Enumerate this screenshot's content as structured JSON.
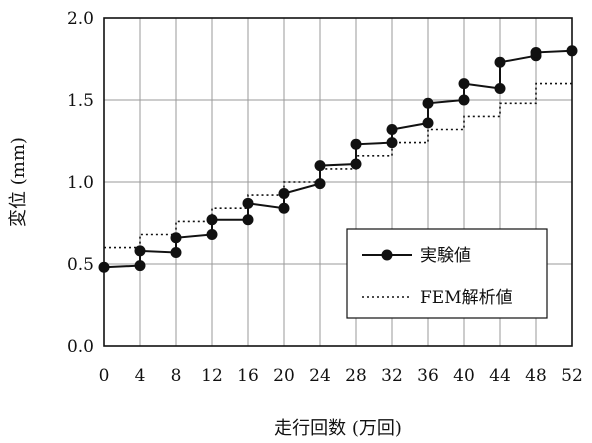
{
  "chart_data": {
    "type": "line",
    "xlabel": "走行回数 (万回)",
    "ylabel": "変位 (mm)",
    "xlim": [
      0,
      52
    ],
    "ylim": [
      0.0,
      2.0
    ],
    "x_ticks": [
      "0",
      "4",
      "8",
      "12",
      "16",
      "20",
      "24",
      "28",
      "32",
      "36",
      "40",
      "44",
      "48",
      "52"
    ],
    "y_ticks": [
      "0.0",
      "0.5",
      "1.0",
      "1.5",
      "2.0"
    ],
    "grid": true,
    "legend_position": "lower-right",
    "series": [
      {
        "name": "実験値",
        "style": "solid-line-markers",
        "color": "#111111",
        "points": [
          [
            0,
            0.48
          ],
          [
            4,
            0.49
          ],
          [
            4,
            0.58
          ],
          [
            8,
            0.57
          ],
          [
            8,
            0.66
          ],
          [
            12,
            0.68
          ],
          [
            12,
            0.77
          ],
          [
            16,
            0.77
          ],
          [
            16,
            0.87
          ],
          [
            20,
            0.84
          ],
          [
            20,
            0.93
          ],
          [
            24,
            0.99
          ],
          [
            24,
            1.1
          ],
          [
            28,
            1.11
          ],
          [
            28,
            1.23
          ],
          [
            32,
            1.24
          ],
          [
            32,
            1.32
          ],
          [
            36,
            1.36
          ],
          [
            36,
            1.48
          ],
          [
            40,
            1.5
          ],
          [
            40,
            1.6
          ],
          [
            44,
            1.57
          ],
          [
            44,
            1.73
          ],
          [
            48,
            1.77
          ],
          [
            48,
            1.79
          ],
          [
            52,
            1.8
          ]
        ]
      },
      {
        "name": "FEM解析値",
        "style": "dotted-step",
        "color": "#111111",
        "points": [
          [
            0,
            0.6
          ],
          [
            4,
            0.6
          ],
          [
            4,
            0.68
          ],
          [
            8,
            0.68
          ],
          [
            8,
            0.76
          ],
          [
            12,
            0.76
          ],
          [
            12,
            0.84
          ],
          [
            16,
            0.84
          ],
          [
            16,
            0.92
          ],
          [
            20,
            0.92
          ],
          [
            20,
            1.0
          ],
          [
            24,
            1.0
          ],
          [
            24,
            1.08
          ],
          [
            28,
            1.08
          ],
          [
            28,
            1.16
          ],
          [
            32,
            1.16
          ],
          [
            32,
            1.24
          ],
          [
            36,
            1.24
          ],
          [
            36,
            1.32
          ],
          [
            40,
            1.32
          ],
          [
            40,
            1.4
          ],
          [
            44,
            1.4
          ],
          [
            44,
            1.48
          ],
          [
            48,
            1.48
          ],
          [
            48,
            1.6
          ],
          [
            52,
            1.6
          ]
        ]
      }
    ]
  }
}
